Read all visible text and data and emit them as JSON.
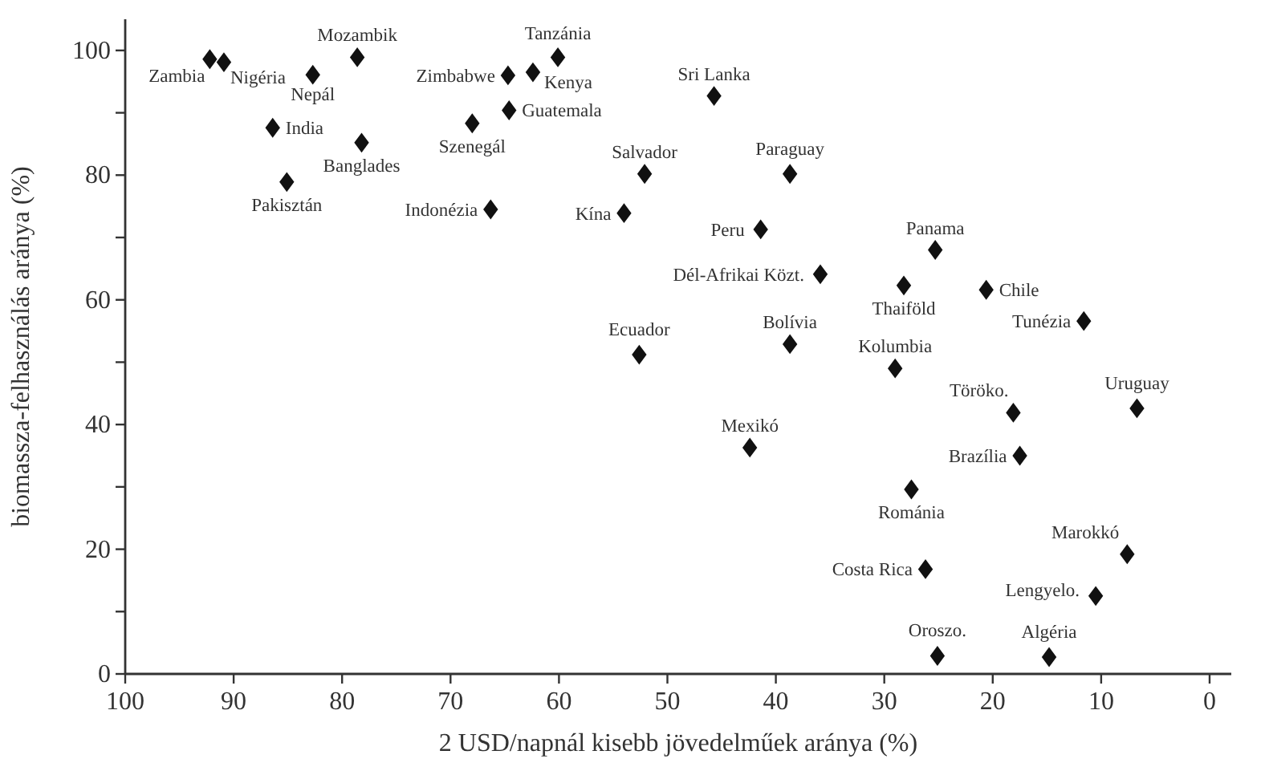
{
  "chart_data": {
    "type": "scatter",
    "xlabel": "2 USD/napnál kisebb jövedelműek aránya (%)",
    "ylabel": "biomassza-felhasználás aránya (%)",
    "xlim": [
      100,
      -2
    ],
    "xticks": [
      100,
      90,
      80,
      70,
      60,
      50,
      40,
      30,
      20,
      10,
      0
    ],
    "ylim": [
      0,
      105
    ],
    "yticks": [
      0,
      {
        "value": 10,
        "label": null
      },
      20,
      {
        "value": 30,
        "label": null
      },
      40,
      {
        "value": 50,
        "label": null
      },
      60,
      {
        "value": 70,
        "label": null
      },
      80,
      {
        "value": 90,
        "label": null
      },
      100
    ],
    "marker": "diamond",
    "series": [
      {
        "color": "#111111",
        "x": [
          92.2,
          90.9,
          82.7,
          78.6,
          86.4,
          78.2,
          85.1,
          68.0,
          64.7,
          62.4,
          60.1,
          64.6,
          52.1,
          66.3,
          54.0,
          52.6,
          45.7,
          38.7,
          41.4,
          35.9,
          25.3,
          28.2,
          20.6,
          11.6,
          38.7,
          29.0,
          6.7,
          18.1,
          42.4,
          17.5,
          27.5,
          7.6,
          26.2,
          10.5,
          25.1,
          14.8
        ],
        "values": [
          98.6,
          98.1,
          96.1,
          98.9,
          87.6,
          85.2,
          78.9,
          88.3,
          96.0,
          96.5,
          98.9,
          90.4,
          80.2,
          74.5,
          73.9,
          51.2,
          92.7,
          80.2,
          71.3,
          64.1,
          68.0,
          62.3,
          61.6,
          56.6,
          52.9,
          49.0,
          42.6,
          41.9,
          36.3,
          35.0,
          29.6,
          19.2,
          16.8,
          12.5,
          2.9,
          2.7
        ]
      }
    ],
    "annotations": [
      {
        "text": "Zambia",
        "x": 92.2,
        "y": 98.6
      },
      {
        "text": "Nigéria",
        "x": 90.9,
        "y": 98.1
      },
      {
        "text": "Nepál",
        "x": 82.7,
        "y": 96.1
      },
      {
        "text": "Mozambik",
        "x": 78.6,
        "y": 98.9
      },
      {
        "text": "India",
        "x": 86.4,
        "y": 87.6
      },
      {
        "text": "Banglades",
        "x": 78.2,
        "y": 85.2
      },
      {
        "text": "Pakisztán",
        "x": 85.1,
        "y": 78.9
      },
      {
        "text": "Szenegál",
        "x": 68.0,
        "y": 88.3
      },
      {
        "text": "Zimbabwe",
        "x": 64.7,
        "y": 96.0
      },
      {
        "text": "Kenya",
        "x": 62.4,
        "y": 96.5
      },
      {
        "text": "Tanzánia",
        "x": 60.1,
        "y": 98.9
      },
      {
        "text": "Guatemala",
        "x": 64.6,
        "y": 90.4
      },
      {
        "text": "Salvador",
        "x": 52.1,
        "y": 80.2
      },
      {
        "text": "Indonézia",
        "x": 66.3,
        "y": 74.5
      },
      {
        "text": "Kína",
        "x": 54.0,
        "y": 73.9
      },
      {
        "text": "Ecuador",
        "x": 52.6,
        "y": 51.2
      },
      {
        "text": "Sri Lanka",
        "x": 45.7,
        "y": 92.7
      },
      {
        "text": "Paraguay",
        "x": 38.7,
        "y": 80.2
      },
      {
        "text": "Peru",
        "x": 41.4,
        "y": 71.3
      },
      {
        "text": "Dél-Afrikai Közt.",
        "x": 35.9,
        "y": 64.1
      },
      {
        "text": "Panama",
        "x": 25.3,
        "y": 68.0
      },
      {
        "text": "Thaiföld",
        "x": 28.2,
        "y": 62.3
      },
      {
        "text": "Chile",
        "x": 20.6,
        "y": 61.6
      },
      {
        "text": "Tunézia",
        "x": 11.6,
        "y": 56.6
      },
      {
        "text": "Bolívia",
        "x": 38.7,
        "y": 52.9
      },
      {
        "text": "Kolumbia",
        "x": 29.0,
        "y": 49.0
      },
      {
        "text": "Uruguay",
        "x": 6.7,
        "y": 42.6
      },
      {
        "text": "Töröko.",
        "x": 18.1,
        "y": 41.9
      },
      {
        "text": "Mexikó",
        "x": 42.4,
        "y": 36.3
      },
      {
        "text": "Brazília",
        "x": 17.5,
        "y": 35.0
      },
      {
        "text": "Románia",
        "x": 27.5,
        "y": 29.6
      },
      {
        "text": "Marokkó",
        "x": 7.6,
        "y": 19.2
      },
      {
        "text": "Costa Rica",
        "x": 26.2,
        "y": 16.8
      },
      {
        "text": "Lengyelo.",
        "x": 10.5,
        "y": 12.5
      },
      {
        "text": "Oroszo.",
        "x": 25.1,
        "y": 2.9
      },
      {
        "text": "Algéria",
        "x": 14.8,
        "y": 2.7
      }
    ]
  }
}
